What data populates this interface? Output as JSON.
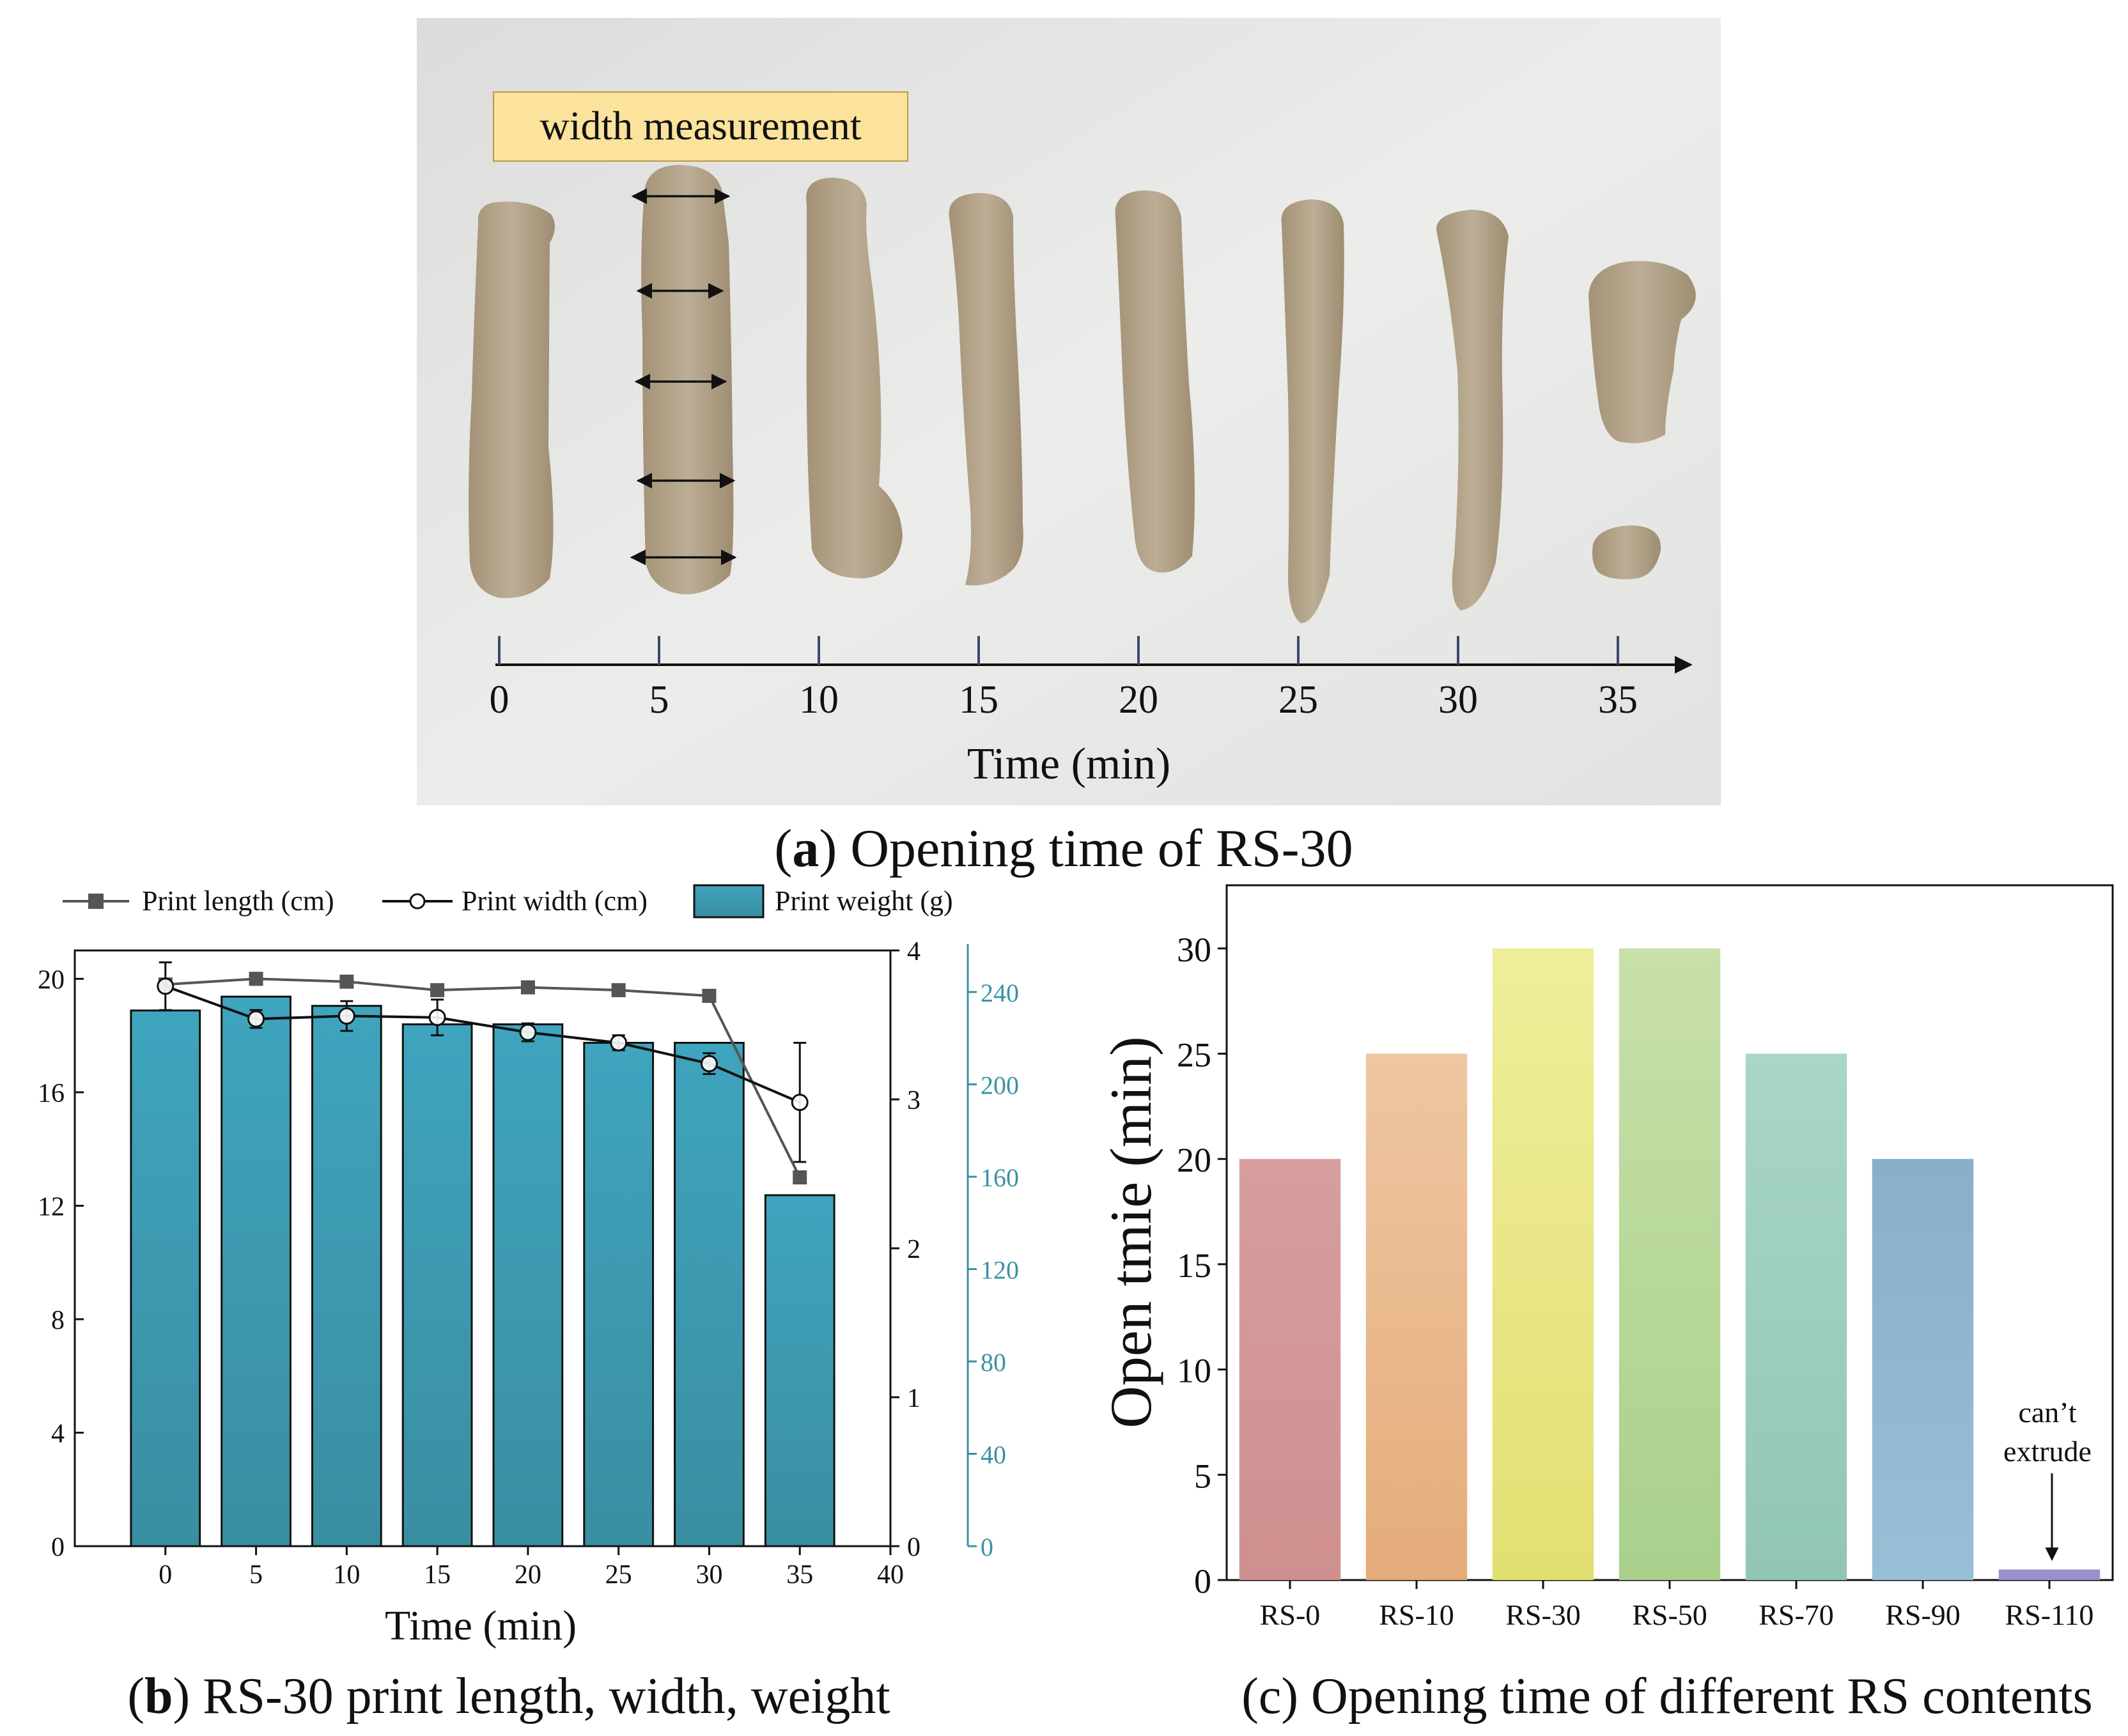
{
  "panel_a": {
    "caption_letter": "a",
    "caption_text": "Opening time of RS-30",
    "label": "width measurement",
    "axis_ticks": [
      "0",
      "5",
      "10",
      "15",
      "20",
      "25",
      "30",
      "35"
    ],
    "axis_title": "Time (min)"
  },
  "panel_b": {
    "caption_letter": "b",
    "caption_text": "RS-30 print length, width, weight"
  },
  "panel_c": {
    "caption_letter": "c",
    "caption_text": "Opening time of different RS contents",
    "annotation_line1": "can’t",
    "annotation_line2": "extrude"
  },
  "colors": {
    "bar_b_top": "#3fa4be",
    "bar_b_bottom": "#3a8ea1",
    "photo_bg": "#e6e6e4",
    "clay": "#b3a288",
    "label_bg": "#fbe39c",
    "weight_axis": "#3a90a6"
  },
  "chart_data": [
    {
      "type": "bar",
      "title": "RS-30 print length, width, weight",
      "xlabel": "Time (min)",
      "x_ticks": [
        "0",
        "5",
        "10",
        "15",
        "20",
        "25",
        "30",
        "35",
        "40"
      ],
      "xlim": [
        -5,
        40
      ],
      "left_axis": {
        "ticks": [
          "0",
          "4",
          "8",
          "12",
          "16",
          "20"
        ],
        "ylim": [
          0,
          21
        ]
      },
      "right_axis_1": {
        "ticks": [
          "0",
          "1",
          "2",
          "3",
          "4"
        ],
        "ylim": [
          0,
          4
        ]
      },
      "right_axis_2": {
        "ticks": [
          "0",
          "40",
          "80",
          "120",
          "160",
          "200",
          "240"
        ],
        "ylim": [
          0,
          258
        ]
      },
      "legend": {
        "length": "Print length (cm)",
        "width": "Print width (cm)",
        "weight": "Print weight (g)",
        "placement": "top"
      },
      "x": [
        0,
        5,
        10,
        15,
        20,
        25,
        30,
        35
      ],
      "series": [
        {
          "name": "Print length (cm)",
          "axis": "left",
          "marker": "square",
          "values": [
            19.8,
            20.0,
            19.9,
            19.6,
            19.7,
            19.6,
            19.4,
            13.0
          ]
        },
        {
          "name": "Print width (cm)",
          "axis": "right_1",
          "marker": "circle",
          "values": [
            3.76,
            3.54,
            3.56,
            3.55,
            3.45,
            3.38,
            3.24,
            2.98
          ],
          "errors": [
            0.16,
            0.06,
            0.1,
            0.12,
            0.06,
            0.05,
            0.07,
            0.4
          ]
        },
        {
          "name": "Print weight (g)",
          "axis": "right_2",
          "type": "bar",
          "values": [
            232,
            238,
            234,
            226,
            226,
            218,
            218,
            152
          ]
        }
      ]
    },
    {
      "type": "bar",
      "title": "Opening time of different RS contents",
      "xlabel": "",
      "ylabel": "Open tmie (min)",
      "ylim": [
        0,
        33
      ],
      "y_ticks": [
        "0",
        "5",
        "10",
        "15",
        "20",
        "25",
        "30"
      ],
      "categories": [
        "RS-0",
        "RS-10",
        "RS-30",
        "RS-50",
        "RS-70",
        "RS-90",
        "RS-110"
      ],
      "values": [
        20,
        25,
        30,
        30,
        25,
        20,
        0.5
      ],
      "bar_colors": [
        [
          "#d69e9f",
          "#cf8f8f"
        ],
        [
          "#eec6a2",
          "#e5ac7a"
        ],
        [
          "#efee9a",
          "#e2df72"
        ],
        [
          "#c8e0a9",
          "#a9d08c"
        ],
        [
          "#a8d6c7",
          "#92c6b4"
        ],
        [
          "#88b0ca",
          "#97bfd6"
        ],
        [
          "#9c8fce",
          "#9c8fce"
        ]
      ]
    }
  ]
}
